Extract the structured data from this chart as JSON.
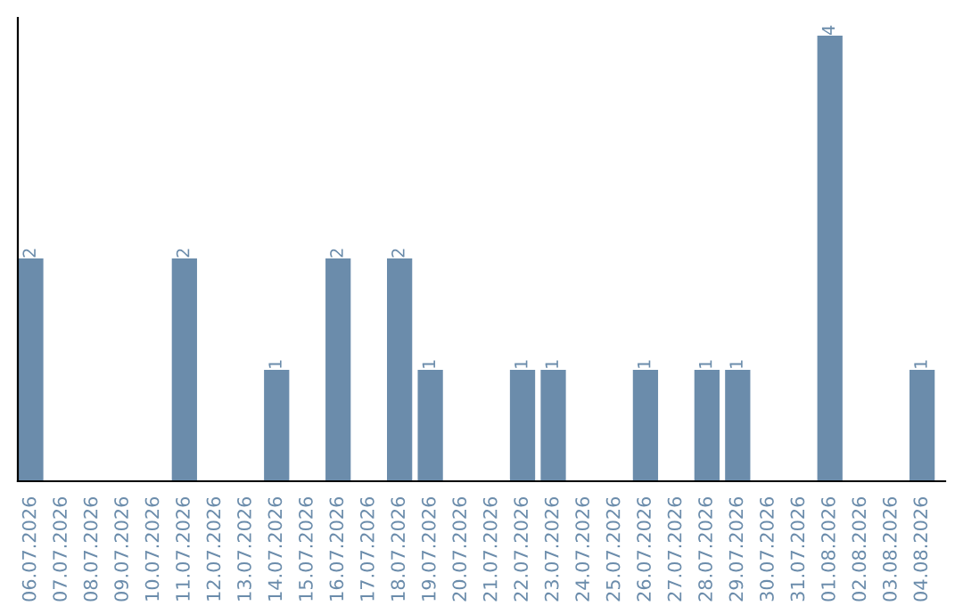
{
  "chart_data": {
    "type": "bar",
    "categories": [
      "06.07.2026",
      "07.07.2026",
      "08.07.2026",
      "09.07.2026",
      "10.07.2026",
      "11.07.2026",
      "12.07.2026",
      "13.07.2026",
      "14.07.2026",
      "15.07.2026",
      "16.07.2026",
      "17.07.2026",
      "18.07.2026",
      "19.07.2026",
      "20.07.2026",
      "21.07.2026",
      "22.07.2026",
      "23.07.2026",
      "24.07.2026",
      "25.07.2026",
      "26.07.2026",
      "27.07.2026",
      "28.07.2026",
      "29.07.2026",
      "30.07.2026",
      "31.07.2026",
      "01.08.2026",
      "02.08.2026",
      "03.08.2026",
      "04.08.2026"
    ],
    "values": [
      2,
      0,
      0,
      0,
      0,
      2,
      0,
      0,
      1,
      0,
      2,
      0,
      2,
      1,
      0,
      0,
      1,
      1,
      0,
      0,
      1,
      0,
      1,
      1,
      0,
      0,
      4,
      0,
      0,
      1
    ],
    "value_labels": [
      "2",
      null,
      null,
      null,
      null,
      "2",
      null,
      null,
      "1",
      null,
      "2",
      null,
      "2",
      "1",
      null,
      null,
      "1",
      "1",
      null,
      null,
      "1",
      null,
      "1",
      "1",
      null,
      null,
      "4",
      null,
      null,
      "1"
    ],
    "color": "#6b8cab",
    "grid": false
  }
}
